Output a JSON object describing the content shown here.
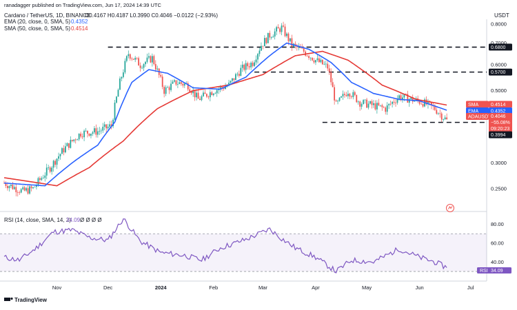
{
  "header": {
    "published": "ranadagger published on TradingView.com, Jun 17, 2024 14:39 UTC",
    "symbol_line": "Cardano / TetherUS, 1D, BINANCE",
    "ohlc": "O0.4167  H0.4187  L0.3990  C0.4046  −0.0122 (−2.93%)",
    "ema_line": "EMA (20, close, 0, SMA, 5)",
    "ema_value": "0.4352",
    "sma_line": "SMA (50, close, 0, SMA, 5)",
    "sma_value": "0.4514",
    "rsi_line": "RSI (14, close, SMA, 14, 2)",
    "rsi_value": "34.09",
    "rsi_extra": "Ø  Ø  Ø  Ø"
  },
  "axis": {
    "currency": "USDT"
  },
  "footer": {
    "brand": "TradingView"
  },
  "colors": {
    "up": "#26a69a",
    "down": "#ef5350",
    "ema": "#2962ff",
    "sma": "#e53935",
    "rsi": "#7e57c2",
    "level": "#131722",
    "badge_dark": "#131722",
    "badge_red": "#ef5350",
    "badge_blue": "#2962ff",
    "badge_rsi": "#7e57c2"
  },
  "chart_data": {
    "type": "candlestick",
    "symbol": "ADAUSDT",
    "x_labels": [
      "Nov",
      "Dec",
      "2024",
      "Feb",
      "Mar",
      "Apr",
      "May",
      "Jun",
      "Jul"
    ],
    "y_ticks": [
      "0.8000",
      "0.7000",
      "0.6000",
      "0.5000",
      "0.4000",
      "0.3000",
      "0.2500"
    ],
    "ylim": [
      0.22,
      0.82
    ],
    "log_scale": true,
    "support_resistance": [
      0.68,
      0.57,
      0.3994
    ],
    "price_labels": {
      "r1": "0.6800",
      "r2": "0.5700",
      "sma": "0.4514",
      "ema": "0.4352",
      "last": "0.4046",
      "last_pct": "−55.08%",
      "countdown": "09:20:23",
      "support": "0.3994",
      "sma_tag": "SMA",
      "ema_tag": "EMA",
      "sym_tag": "ADAUSDT"
    },
    "price_path": [
      [
        "2023-10-01",
        0.26
      ],
      [
        "2023-10-12",
        0.245
      ],
      [
        "2023-10-18",
        0.25
      ],
      [
        "2023-10-28",
        0.29
      ],
      [
        "2023-11-05",
        0.33
      ],
      [
        "2023-11-15",
        0.37
      ],
      [
        "2023-11-25",
        0.375
      ],
      [
        "2023-12-03",
        0.39
      ],
      [
        "2023-12-08",
        0.53
      ],
      [
        "2023-12-13",
        0.65
      ],
      [
        "2023-12-20",
        0.6
      ],
      [
        "2023-12-27",
        0.63
      ],
      [
        "2024-01-03",
        0.5
      ],
      [
        "2024-01-10",
        0.53
      ],
      [
        "2024-01-17",
        0.52
      ],
      [
        "2024-01-23",
        0.47
      ],
      [
        "2024-02-01",
        0.5
      ],
      [
        "2024-02-10",
        0.52
      ],
      [
        "2024-02-17",
        0.58
      ],
      [
        "2024-02-24",
        0.61
      ],
      [
        "2024-02-29",
        0.69
      ],
      [
        "2024-03-05",
        0.74
      ],
      [
        "2024-03-12",
        0.78
      ],
      [
        "2024-03-18",
        0.69
      ],
      [
        "2024-03-25",
        0.66
      ],
      [
        "2024-04-01",
        0.62
      ],
      [
        "2024-04-08",
        0.59
      ],
      [
        "2024-04-13",
        0.45
      ],
      [
        "2024-04-20",
        0.5
      ],
      [
        "2024-04-27",
        0.46
      ],
      [
        "2024-05-05",
        0.45
      ],
      [
        "2024-05-12",
        0.44
      ],
      [
        "2024-05-20",
        0.48
      ],
      [
        "2024-05-27",
        0.47
      ],
      [
        "2024-06-03",
        0.46
      ],
      [
        "2024-06-10",
        0.44
      ],
      [
        "2024-06-17",
        0.4046
      ]
    ],
    "ema20_path": [
      [
        "2023-10-01",
        0.26
      ],
      [
        "2023-10-25",
        0.255
      ],
      [
        "2023-11-10",
        0.3
      ],
      [
        "2023-11-25",
        0.34
      ],
      [
        "2023-12-05",
        0.4
      ],
      [
        "2023-12-15",
        0.53
      ],
      [
        "2023-12-25",
        0.58
      ],
      [
        "2024-01-05",
        0.565
      ],
      [
        "2024-01-20",
        0.51
      ],
      [
        "2024-02-05",
        0.505
      ],
      [
        "2024-02-20",
        0.55
      ],
      [
        "2024-03-05",
        0.64
      ],
      [
        "2024-03-15",
        0.7
      ],
      [
        "2024-03-28",
        0.67
      ],
      [
        "2024-04-10",
        0.61
      ],
      [
        "2024-04-22",
        0.53
      ],
      [
        "2024-05-05",
        0.49
      ],
      [
        "2024-05-20",
        0.47
      ],
      [
        "2024-06-01",
        0.465
      ],
      [
        "2024-06-17",
        0.4352
      ]
    ],
    "sma50_path": [
      [
        "2023-10-01",
        0.27
      ],
      [
        "2023-11-01",
        0.255
      ],
      [
        "2023-11-20",
        0.29
      ],
      [
        "2023-12-10",
        0.35
      ],
      [
        "2023-12-30",
        0.44
      ],
      [
        "2024-01-20",
        0.5
      ],
      [
        "2024-02-10",
        0.52
      ],
      [
        "2024-03-01",
        0.56
      ],
      [
        "2024-03-20",
        0.64
      ],
      [
        "2024-04-05",
        0.66
      ],
      [
        "2024-04-20",
        0.62
      ],
      [
        "2024-05-10",
        0.52
      ],
      [
        "2024-05-30",
        0.47
      ],
      [
        "2024-06-17",
        0.4514
      ]
    ],
    "rsi": {
      "y_ticks": [
        "80.00",
        "60.00",
        "40.00"
      ],
      "ylim": [
        22,
        90
      ],
      "band": [
        30,
        70
      ],
      "path": [
        [
          "2023-10-01",
          45
        ],
        [
          "2023-10-10",
          42
        ],
        [
          "2023-10-20",
          55
        ],
        [
          "2023-10-30",
          72
        ],
        [
          "2023-11-10",
          74
        ],
        [
          "2023-11-20",
          66
        ],
        [
          "2023-12-01",
          63
        ],
        [
          "2023-12-10",
          86
        ],
        [
          "2023-12-20",
          62
        ],
        [
          "2024-01-01",
          50
        ],
        [
          "2024-01-15",
          47
        ],
        [
          "2024-01-25",
          42
        ],
        [
          "2024-02-05",
          55
        ],
        [
          "2024-02-20",
          64
        ],
        [
          "2024-03-05",
          75
        ],
        [
          "2024-03-12",
          65
        ],
        [
          "2024-03-20",
          55
        ],
        [
          "2024-04-01",
          45
        ],
        [
          "2024-04-13",
          30
        ],
        [
          "2024-04-22",
          42
        ],
        [
          "2024-05-05",
          40
        ],
        [
          "2024-05-20",
          54
        ],
        [
          "2024-06-01",
          45
        ],
        [
          "2024-06-10",
          40
        ],
        [
          "2024-06-17",
          34.09
        ]
      ]
    }
  }
}
